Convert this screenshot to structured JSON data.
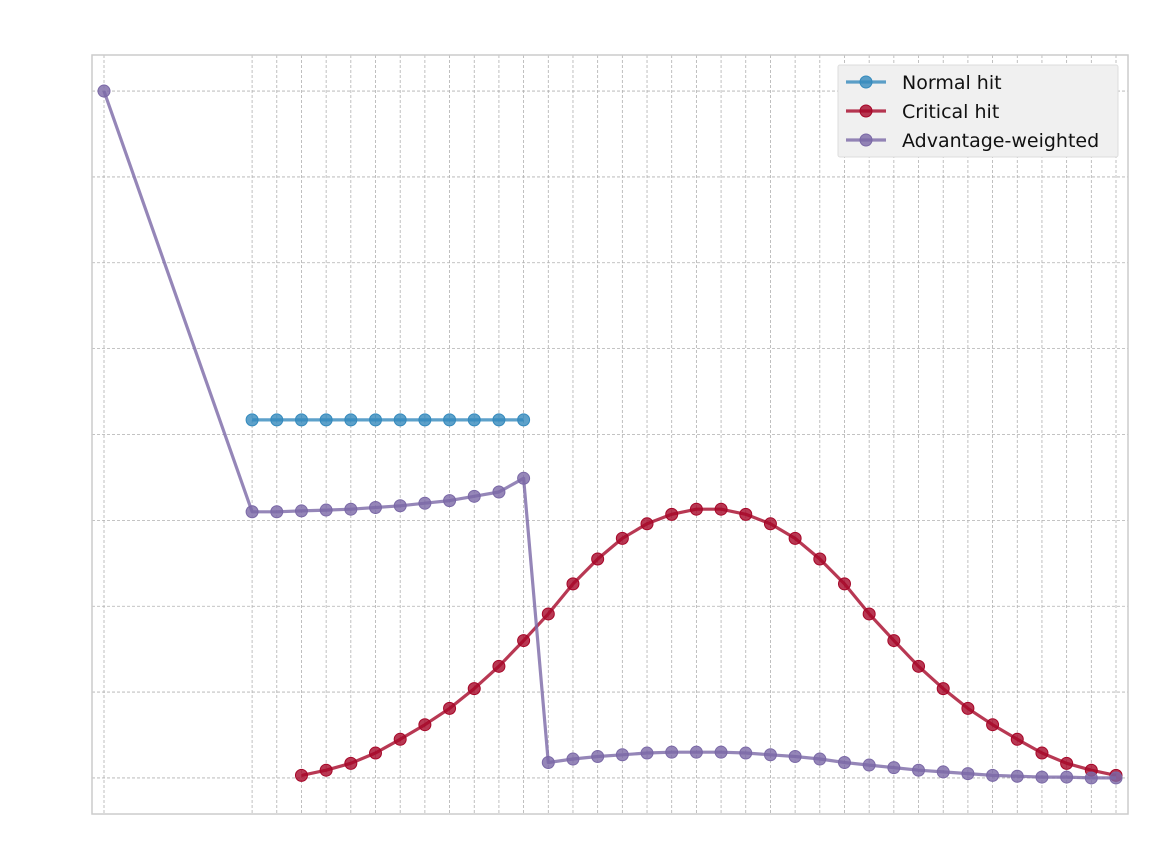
{
  "chart_data": {
    "type": "line",
    "title": "",
    "xlabel": "",
    "ylabel": "",
    "x_range": [
      1,
      42
    ],
    "y_range": [
      -0.0042,
      0.0842
    ],
    "x_gridlines": [
      1,
      7,
      8,
      9,
      10,
      11,
      12,
      13,
      14,
      15,
      16,
      17,
      18,
      19,
      20,
      21,
      22,
      23,
      24,
      25,
      26,
      27,
      28,
      29,
      30,
      31,
      32,
      33,
      34,
      35,
      36,
      37,
      38,
      39,
      40,
      41,
      42
    ],
    "y_gridlines": [
      0,
      0.01,
      0.02,
      0.03,
      0.04,
      0.05,
      0.06,
      0.07,
      0.08
    ],
    "grid": true,
    "legend_position": "top-right",
    "series": [
      {
        "name": "Normal hit",
        "color": "#348ABD",
        "x": [
          7,
          8,
          9,
          10,
          11,
          12,
          13,
          14,
          15,
          16,
          17,
          18
        ],
        "y": [
          0.0417,
          0.0417,
          0.0417,
          0.0417,
          0.0417,
          0.0417,
          0.0417,
          0.0417,
          0.0417,
          0.0417,
          0.0417,
          0.0417
        ]
      },
      {
        "name": "Critical hit",
        "color": "#A60628",
        "x": [
          9,
          10,
          11,
          12,
          13,
          14,
          15,
          16,
          17,
          18,
          19,
          20,
          21,
          22,
          23,
          24,
          25,
          26,
          27,
          28,
          29,
          30,
          31,
          32,
          33,
          34,
          35,
          36,
          37,
          38,
          39,
          40,
          41,
          42
        ],
        "y": [
          0.0003,
          0.0009,
          0.0017,
          0.0029,
          0.0045,
          0.0062,
          0.0081,
          0.0104,
          0.013,
          0.016,
          0.0191,
          0.0226,
          0.0255,
          0.0279,
          0.0296,
          0.0307,
          0.0313,
          0.0313,
          0.0307,
          0.0296,
          0.0279,
          0.0255,
          0.0226,
          0.0191,
          0.016,
          0.013,
          0.0104,
          0.0081,
          0.0062,
          0.0045,
          0.0029,
          0.0017,
          0.0009,
          0.0003
        ]
      },
      {
        "name": "Advantage-weighted",
        "color": "#7A68A6",
        "x": [
          1,
          7,
          8,
          9,
          10,
          11,
          12,
          13,
          14,
          15,
          16,
          17,
          18,
          19,
          20,
          21,
          22,
          23,
          24,
          25,
          26,
          27,
          28,
          29,
          30,
          31,
          32,
          33,
          34,
          35,
          36,
          37,
          38,
          39,
          40,
          41,
          42
        ],
        "y": [
          0.08,
          0.031,
          0.031,
          0.0311,
          0.0312,
          0.0313,
          0.0315,
          0.0317,
          0.032,
          0.0323,
          0.0328,
          0.0333,
          0.0349,
          0.0018,
          0.0022,
          0.0025,
          0.0027,
          0.0029,
          0.003,
          0.003,
          0.003,
          0.0029,
          0.0027,
          0.0025,
          0.0022,
          0.0018,
          0.0015,
          0.0012,
          0.0009,
          0.0007,
          0.0005,
          0.0003,
          0.0002,
          0.0001,
          0.0001,
          0,
          0
        ]
      }
    ]
  }
}
